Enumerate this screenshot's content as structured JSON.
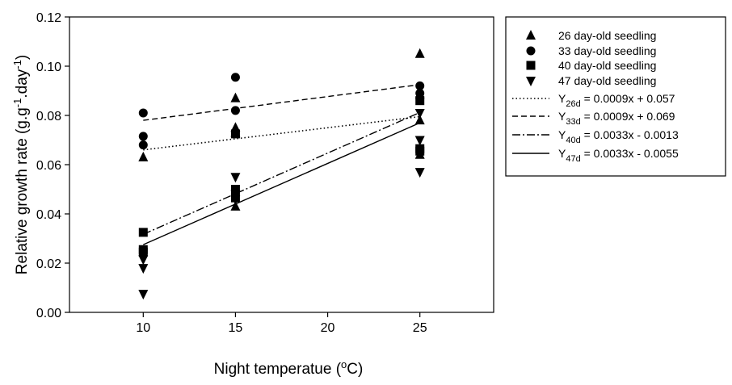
{
  "chart_data": {
    "type": "scatter",
    "xlabel_main": "Night temperatue (",
    "xlabel_sup": "o",
    "xlabel_end": "C)",
    "ylabel_main": "Relative growth rate (g.g",
    "ylabel_sup1": "-1",
    "ylabel_mid": ".day",
    "ylabel_sup2": "-1",
    "ylabel_end": ")",
    "xlim": [
      6,
      29
    ],
    "ylim": [
      0.0,
      0.12
    ],
    "x_ticks": [
      10,
      15,
      20,
      25
    ],
    "y_ticks": [
      "0.00",
      "0.02",
      "0.04",
      "0.06",
      "0.08",
      "0.10",
      "0.12"
    ],
    "series": [
      {
        "name": "26 day-old seedling",
        "marker": "triangle-up",
        "points": [
          [
            10,
            0.063
          ],
          [
            15,
            0.087
          ],
          [
            15,
            0.075
          ],
          [
            15,
            0.073
          ],
          [
            15,
            0.043
          ],
          [
            25,
            0.105
          ],
          [
            25,
            0.078
          ],
          [
            25,
            0.064
          ]
        ]
      },
      {
        "name": "33 day-old seedling",
        "marker": "circle",
        "points": [
          [
            10,
            0.081
          ],
          [
            10,
            0.0715
          ],
          [
            10,
            0.068
          ],
          [
            15,
            0.0955
          ],
          [
            15,
            0.082
          ],
          [
            25,
            0.092
          ],
          [
            25,
            0.089
          ],
          [
            25,
            0.087
          ]
        ]
      },
      {
        "name": "40 day-old seedling",
        "marker": "square",
        "points": [
          [
            10,
            0.0325
          ],
          [
            10,
            0.0255
          ],
          [
            10,
            0.0245
          ],
          [
            15,
            0.0725
          ],
          [
            15,
            0.05
          ],
          [
            15,
            0.0465
          ],
          [
            25,
            0.086
          ],
          [
            25,
            0.0665
          ],
          [
            25,
            0.0655
          ]
        ]
      },
      {
        "name": "47 day-old seedling",
        "marker": "triangle-down",
        "points": [
          [
            10,
            0.0215
          ],
          [
            10,
            0.018
          ],
          [
            10,
            0.0075
          ],
          [
            15,
            0.055
          ],
          [
            15,
            0.048
          ],
          [
            15,
            0.046
          ],
          [
            25,
            0.081
          ],
          [
            25,
            0.07
          ],
          [
            25,
            0.057
          ]
        ]
      }
    ],
    "fit_lines": [
      {
        "label_main": "Y",
        "label_sub": "26d",
        "equation": " = 0.0009x + 0.057",
        "style": "dotted",
        "x": [
          10,
          25
        ],
        "y": [
          0.066,
          0.0795
        ]
      },
      {
        "label_main": "Y",
        "label_sub": "33d",
        "equation": " = 0.0009x + 0.069",
        "style": "dashed",
        "x": [
          10,
          25
        ],
        "y": [
          0.078,
          0.0925
        ]
      },
      {
        "label_main": "Y",
        "label_sub": "40d",
        "equation": " = 0.0033x - 0.0013",
        "style": "dashdot",
        "x": [
          10,
          25
        ],
        "y": [
          0.0317,
          0.0812
        ]
      },
      {
        "label_main": "Y",
        "label_sub": "47d",
        "equation": " = 0.0033x - 0.0055",
        "style": "solid",
        "x": [
          10,
          25
        ],
        "y": [
          0.0275,
          0.077
        ]
      }
    ]
  }
}
